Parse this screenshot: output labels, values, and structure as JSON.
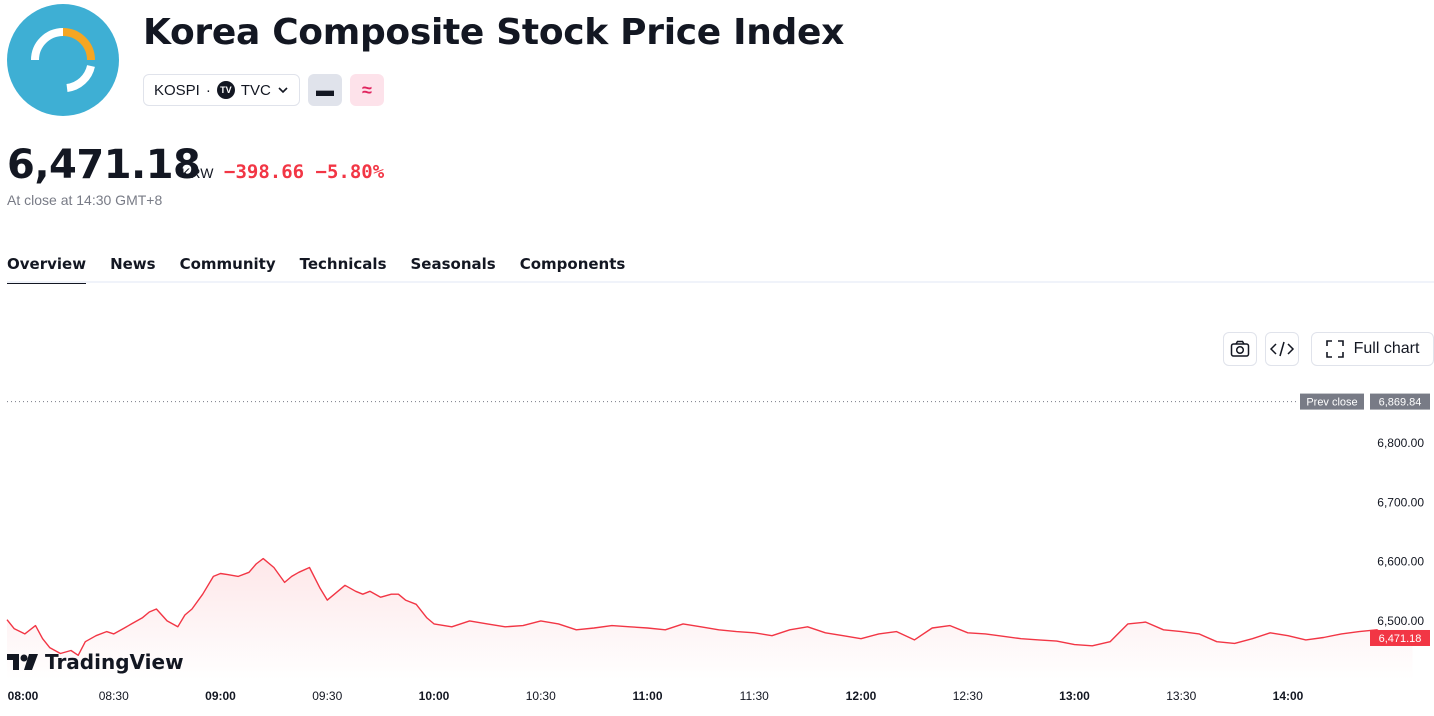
{
  "header": {
    "title": "Korea Composite Stock Price Index",
    "symbol": "KOSPI",
    "exchange": "TVC",
    "exchange_badge": "TV",
    "logo_icon": "kospi-logo-icon",
    "gray_button_glyph": "▬",
    "pink_button_glyph": "≈"
  },
  "quote": {
    "price": "6,471.18",
    "currency": "KRW",
    "change": "−398.66",
    "change_percent": "−5.80%",
    "status": "At close at 14:30 GMT+8",
    "change_color": "#f23645"
  },
  "tabs": [
    {
      "label": "Overview",
      "active": true
    },
    {
      "label": "News"
    },
    {
      "label": "Community"
    },
    {
      "label": "Technicals"
    },
    {
      "label": "Seasonals"
    },
    {
      "label": "Components"
    }
  ],
  "toolbar": {
    "camera_icon": "camera-icon",
    "embed_icon": "code-icon",
    "full_chart_label": "Full chart",
    "full_chart_icon": "fullscreen-icon"
  },
  "brand": {
    "label": "TradingView"
  },
  "chart_data": {
    "type": "area",
    "series_color": "#f23645",
    "y_ticks": [
      "6,800.00",
      "6,700.00",
      "6,600.00",
      "6,500.00"
    ],
    "ylim": [
      6400,
      6900
    ],
    "x_ticks": [
      "08:00",
      "08:30",
      "09:00",
      "09:30",
      "10:00",
      "10:30",
      "11:00",
      "11:30",
      "12:00",
      "12:30",
      "13:00",
      "13:30",
      "14:00"
    ],
    "prev_close": {
      "label": "Prev close",
      "value": "6,869.84",
      "numeric": 6869.84
    },
    "last": {
      "value": "6,471.18",
      "numeric": 6471.18
    },
    "x_minutes": [
      0,
      2,
      5,
      8,
      10,
      12,
      15,
      18,
      20,
      22,
      25,
      28,
      30,
      33,
      35,
      38,
      40,
      42,
      45,
      48,
      50,
      52,
      55,
      58,
      60,
      62,
      65,
      68,
      70,
      72,
      75,
      78,
      80,
      82,
      85,
      88,
      90,
      92,
      95,
      98,
      100,
      102,
      105,
      108,
      110,
      112,
      115,
      118,
      120,
      125,
      130,
      135,
      140,
      145,
      150,
      155,
      160,
      165,
      170,
      175,
      180,
      185,
      190,
      195,
      200,
      205,
      210,
      215,
      220,
      225,
      230,
      235,
      240,
      245,
      250,
      255,
      260,
      265,
      270,
      275,
      280,
      285,
      290,
      295,
      300,
      305,
      310,
      315,
      320,
      325,
      330,
      335,
      340,
      345,
      350,
      355,
      360,
      365,
      370,
      375,
      380,
      385,
      390,
      395
    ],
    "values": [
      6502,
      6487,
      6478,
      6492,
      6470,
      6455,
      6445,
      6450,
      6442,
      6465,
      6475,
      6482,
      6478,
      6488,
      6495,
      6505,
      6515,
      6520,
      6500,
      6490,
      6510,
      6520,
      6545,
      6575,
      6580,
      6578,
      6575,
      6582,
      6596,
      6605,
      6590,
      6565,
      6575,
      6582,
      6590,
      6555,
      6535,
      6545,
      6560,
      6550,
      6545,
      6550,
      6540,
      6545,
      6545,
      6535,
      6528,
      6505,
      6495,
      6490,
      6500,
      6495,
      6490,
      6492,
      6500,
      6495,
      6485,
      6488,
      6492,
      6490,
      6488,
      6485,
      6495,
      6490,
      6485,
      6482,
      6480,
      6475,
      6485,
      6490,
      6480,
      6475,
      6470,
      6478,
      6482,
      6468,
      6488,
      6492,
      6480,
      6478,
      6474,
      6470,
      6468,
      6466,
      6460,
      6458,
      6465,
      6495,
      6498,
      6485,
      6482,
      6478,
      6465,
      6462,
      6470,
      6480,
      6475,
      6468,
      6472,
      6478,
      6482,
      6485,
      6465,
      6471.18
    ]
  }
}
